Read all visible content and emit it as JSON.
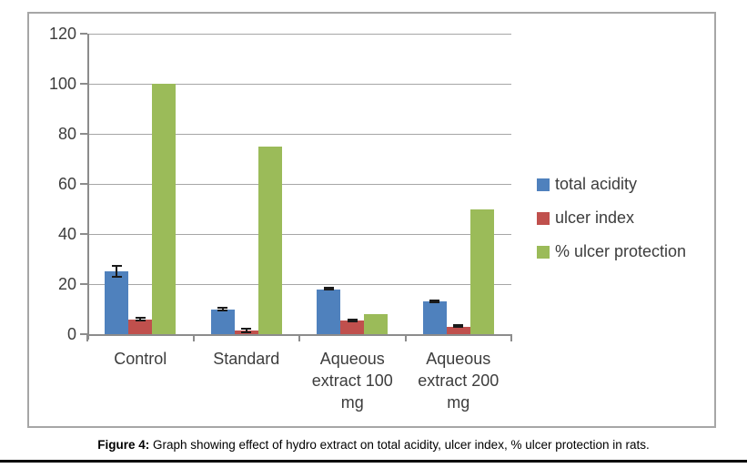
{
  "figure": {
    "caption_prefix": "Figure 4:",
    "caption_text": " Graph showing effect of hydro extract on total acidity, ulcer index, % ulcer protection in rats."
  },
  "chart_data": {
    "type": "bar",
    "title": "",
    "xlabel": "",
    "ylabel": "",
    "categories": [
      "Control",
      "Standard",
      "Aqueous extract 100 mg",
      "Aqueous extract 200 mg"
    ],
    "series": [
      {
        "name": "total acidity",
        "color": "#4f81bd",
        "values": [
          25,
          10,
          18,
          13
        ],
        "errors": [
          2.5,
          0.8,
          0.7,
          0.7
        ]
      },
      {
        "name": "ulcer index",
        "color": "#c0504d",
        "values": [
          6,
          1.5,
          5.5,
          3
        ],
        "errors": [
          1,
          1,
          0.6,
          0.5
        ]
      },
      {
        "name": "% ulcer protection",
        "color": "#9bbb59",
        "values": [
          100,
          75,
          8,
          50
        ],
        "errors": [
          0,
          0,
          0,
          0
        ]
      }
    ],
    "ylim": [
      0,
      120
    ],
    "yticks": [
      0,
      20,
      40,
      60,
      80,
      100,
      120
    ],
    "grid": true,
    "legend_position": "right",
    "colors": {
      "axis": "#8c8c8c",
      "gridline": "#a6a6a6",
      "text": "#3d3d3d",
      "error_bar": "#1a1a1a",
      "chart_border": "#a6a6a6",
      "bottom_rule": "#000000"
    }
  }
}
